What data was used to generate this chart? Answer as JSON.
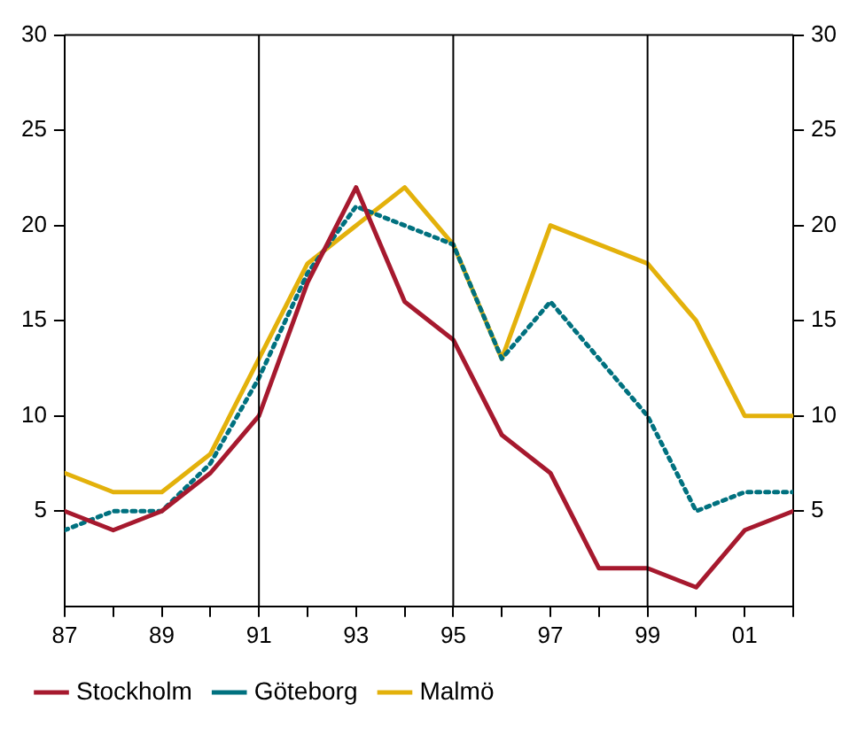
{
  "chart_data": {
    "type": "line",
    "x": [
      1987,
      1988,
      1989,
      1990,
      1991,
      1992,
      1993,
      1994,
      1995,
      1996,
      1997,
      1998,
      1999,
      2000,
      2001,
      2002
    ],
    "series": [
      {
        "name": "Stockholm",
        "color": "#a6192e",
        "line_style": "solid",
        "values": [
          5,
          4,
          5,
          7,
          10,
          17,
          22,
          16,
          14,
          9,
          7,
          2,
          2,
          1,
          4,
          5
        ]
      },
      {
        "name": "Göteborg",
        "color": "#00717f",
        "line_style": "dotted",
        "values": [
          4,
          5,
          5,
          7.5,
          12,
          17.5,
          21,
          20,
          19,
          13,
          16,
          13,
          10,
          5,
          6,
          6
        ]
      },
      {
        "name": "Malmö",
        "color": "#e3b10b",
        "line_style": "solid",
        "values": [
          7,
          6,
          6,
          8,
          13,
          18,
          20,
          22,
          19,
          13,
          20,
          19,
          18,
          15,
          10,
          10
        ]
      }
    ],
    "xlim": [
      1987,
      2002
    ],
    "xticks": [
      {
        "value": 1987,
        "label": "87"
      },
      {
        "value": 1988,
        "label": null
      },
      {
        "value": 1989,
        "label": "89"
      },
      {
        "value": 1990,
        "label": null
      },
      {
        "value": 1991,
        "label": "91"
      },
      {
        "value": 1992,
        "label": null
      },
      {
        "value": 1993,
        "label": "93"
      },
      {
        "value": 1994,
        "label": null
      },
      {
        "value": 1995,
        "label": "95"
      },
      {
        "value": 1996,
        "label": null
      },
      {
        "value": 1997,
        "label": "97"
      },
      {
        "value": 1998,
        "label": null
      },
      {
        "value": 1999,
        "label": "99"
      },
      {
        "value": 2000,
        "label": null
      },
      {
        "value": 2001,
        "label": "01"
      },
      {
        "value": 2002,
        "label": null
      }
    ],
    "ylim": [
      0,
      30
    ],
    "yticks": [
      5,
      10,
      15,
      20,
      25,
      30
    ],
    "y2lim": [
      0,
      30
    ],
    "y2ticks": [
      5,
      10,
      15,
      20,
      25,
      30
    ],
    "ref_lines": [
      {
        "axis": "x",
        "value": 1991,
        "color": "#000000"
      },
      {
        "axis": "x",
        "value": 1995,
        "color": "#000000"
      },
      {
        "axis": "x",
        "value": 1999,
        "color": "#000000"
      }
    ],
    "grid": false,
    "legend": "bottom",
    "marker": "none"
  }
}
